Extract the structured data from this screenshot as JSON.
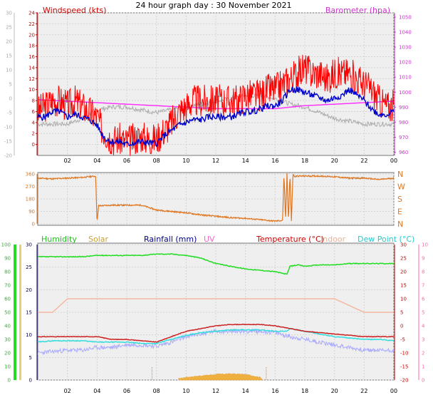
{
  "page_title": "24 hour graph day : 30 November 2021",
  "colors": {
    "wind": "#ff0000",
    "gust_avg": "#0000cc",
    "baro": "#ff33ff",
    "temp_wind_axis": "#cc0000",
    "grey_line": "#aaaaaa",
    "dir": "#dd7722",
    "humidity": "#22dd22",
    "solar": "#f0b040",
    "rain": "#000080",
    "uv": "#ff66cc",
    "temperature": "#cc2222",
    "indoor": "#f4b8a0",
    "dewpoint": "#33dddd",
    "apparent": "#aaaaff",
    "rain_axis": "#000066",
    "pink_axis": "#ff66aa"
  },
  "chart_data": [
    {
      "type": "line",
      "x_ticks": [
        "02",
        "04",
        "06",
        "08",
        "10",
        "12",
        "14",
        "16",
        "18",
        "20",
        "22",
        "00"
      ],
      "left_axis": {
        "label": "Windspeed (kts)",
        "ticks": [
          "0",
          "2",
          "4",
          "6",
          "8",
          "10",
          "12",
          "14",
          "16",
          "18",
          "20",
          "22",
          "24"
        ]
      },
      "far_left_axis": {
        "ticks": [
          "-20",
          "-15",
          "-10",
          "-5",
          "0",
          "5",
          "10",
          "15",
          "20",
          "25",
          "30"
        ]
      },
      "right_axis": {
        "label": "Barometer (hpa)",
        "ticks": [
          "960",
          "970",
          "980",
          "990",
          "1000",
          "1010",
          "1020",
          "1030",
          "1040",
          "1050"
        ]
      },
      "series": [
        {
          "key": "wind",
          "hours": [
            0,
            0.5,
            1,
            1.5,
            2,
            2.5,
            3,
            3.5,
            4,
            4.3,
            4.6,
            5,
            5.5,
            6,
            6.5,
            7,
            7.5,
            8,
            8.3,
            8.7,
            9,
            9.5,
            10,
            10.5,
            11,
            11.5,
            12,
            12.5,
            13,
            13.5,
            14,
            14.5,
            15,
            15.5,
            16,
            16.5,
            17,
            17.5,
            18,
            18.5,
            19,
            19.5,
            20,
            20.5,
            21,
            21.5,
            22,
            22.5,
            23,
            23.5,
            24
          ],
          "values": [
            6,
            7,
            8,
            8,
            7,
            8,
            7,
            6,
            5,
            3,
            2,
            1,
            1,
            0.5,
            1,
            1.5,
            1,
            1,
            2,
            3,
            4,
            6,
            7,
            8,
            8,
            8,
            8,
            8,
            8,
            8,
            9,
            9,
            9,
            10,
            10,
            11,
            12,
            13,
            14,
            13,
            13,
            12,
            13,
            13,
            13,
            12,
            11,
            10,
            8,
            7,
            7
          ]
        },
        {
          "key": "gust_avg",
          "hours": [
            0,
            0.5,
            1,
            1.5,
            2,
            2.5,
            3,
            3.5,
            4,
            4.3,
            4.6,
            5,
            5.5,
            6,
            6.5,
            7,
            7.5,
            8,
            8.3,
            8.7,
            9,
            9.5,
            10,
            10.5,
            11,
            11.5,
            12,
            12.5,
            13,
            13.5,
            14,
            14.5,
            15,
            15.5,
            16,
            16.5,
            17,
            17.5,
            18,
            18.5,
            19,
            19.5,
            20,
            20.5,
            21,
            21.5,
            22,
            22.5,
            23,
            23.5,
            24
          ],
          "values": [
            5,
            5,
            6,
            6,
            5,
            5.5,
            5,
            4.5,
            3.5,
            2,
            1,
            0.5,
            0.5,
            0,
            0.3,
            0.5,
            0.3,
            0.2,
            1,
            2,
            2.5,
            3.5,
            4,
            4.5,
            4.5,
            5,
            5,
            5,
            5,
            5.5,
            6,
            6,
            6.5,
            7,
            7,
            8,
            10,
            10,
            9.5,
            9,
            8.5,
            8,
            8.5,
            9,
            10,
            9,
            8,
            6.5,
            5.5,
            5.5,
            6
          ]
        },
        {
          "key": "grey_line",
          "hours": [
            0,
            1,
            2,
            3,
            4,
            5,
            6,
            7,
            8,
            9,
            10,
            11,
            12,
            13,
            14,
            15,
            16,
            17,
            18,
            19,
            20,
            21,
            22,
            23,
            24
          ],
          "values_far_left": [
            -10,
            -10,
            -10,
            -8,
            -5,
            -4,
            -4,
            -5,
            -6,
            -5,
            -4,
            -3,
            -2,
            -1,
            0,
            0,
            -1,
            -3,
            -4,
            -6,
            -8,
            -9,
            -10,
            -10,
            -10
          ]
        },
        {
          "key": "baro",
          "hours": [
            0,
            2,
            4,
            6,
            8,
            10,
            12,
            14,
            16,
            17,
            18,
            20,
            22,
            24
          ],
          "values_hpa": [
            995,
            994,
            993,
            992,
            991,
            990,
            989,
            989,
            989,
            990,
            991,
            992,
            993,
            994
          ]
        }
      ]
    },
    {
      "type": "line",
      "x_ticks": [
        "02",
        "04",
        "06",
        "08",
        "10",
        "12",
        "14",
        "16",
        "18",
        "20",
        "22",
        "00"
      ],
      "left_axis": {
        "ticks": [
          "0",
          "90",
          "180",
          "270",
          "360"
        ]
      },
      "right_axis": {
        "ticks": [
          "N",
          "W",
          "S",
          "E",
          "N"
        ]
      },
      "series": [
        {
          "key": "dir",
          "hours": [
            0,
            1,
            2,
            3,
            3.9,
            4.0,
            4.1,
            5,
            6,
            7,
            8,
            8.5,
            9,
            10,
            11,
            12,
            13,
            14,
            15,
            16,
            16.5,
            16.6,
            16.7,
            16.8,
            16.9,
            17.0,
            17.1,
            17.2,
            17.3,
            17.5,
            18,
            19,
            20,
            21,
            22,
            23,
            24
          ],
          "values": [
            330,
            325,
            330,
            335,
            345,
            10,
            130,
            135,
            135,
            135,
            100,
            95,
            90,
            80,
            65,
            55,
            45,
            40,
            30,
            20,
            25,
            360,
            20,
            360,
            20,
            360,
            20,
            360,
            340,
            345,
            345,
            345,
            340,
            330,
            330,
            320,
            330
          ]
        }
      ]
    },
    {
      "type": "line",
      "x_ticks": [
        "02",
        "04",
        "06",
        "08",
        "10",
        "12",
        "14",
        "16",
        "18",
        "20",
        "22",
        "00"
      ],
      "legend": [
        "Humidity",
        "Solar",
        "Rainfall (mm)",
        "UV",
        "Temperature (°C)",
        "Indoor",
        "Dew Point (°C)"
      ],
      "humidity_axis": {
        "ticks": [
          "0",
          "10",
          "20",
          "30",
          "40",
          "50",
          "60",
          "70",
          "80",
          "90",
          "100"
        ]
      },
      "solar_axis": {
        "ticks": []
      },
      "rain_axis": {
        "ticks": [
          "0",
          "5",
          "10",
          "15",
          "20",
          "25",
          "30"
        ]
      },
      "temp_axis": {
        "ticks": [
          "-20",
          "-15",
          "-10",
          "-5",
          "0",
          "5",
          "10",
          "15",
          "20",
          "25",
          "30"
        ]
      },
      "uv_axis": {
        "ticks": [
          "0",
          "1",
          "2",
          "3",
          "4",
          "5",
          "6",
          "7",
          "8",
          "9",
          "10"
        ]
      },
      "series": [
        {
          "key": "humidity",
          "hours": [
            0,
            1,
            2,
            3,
            4,
            5,
            6,
            7,
            8,
            9,
            10,
            11,
            12,
            13,
            14,
            15,
            16,
            16.8,
            17,
            17.5,
            18,
            19,
            20,
            21,
            22,
            23,
            24
          ],
          "values": [
            91,
            91,
            91,
            91,
            92,
            92,
            92,
            92,
            93,
            93,
            92,
            90,
            86,
            84,
            82,
            81,
            80,
            78,
            84,
            85,
            84,
            85,
            85,
            86,
            86,
            86,
            86
          ]
        },
        {
          "key": "temperature",
          "hours": [
            0,
            1,
            2,
            3,
            4,
            5,
            6,
            7,
            8,
            9,
            10,
            11,
            12,
            13,
            14,
            15,
            16,
            17,
            18,
            19,
            20,
            21,
            22,
            23,
            24
          ],
          "values": [
            -4,
            -4,
            -4,
            -4,
            -4,
            -5,
            -5,
            -5.5,
            -6,
            -4,
            -2,
            -1,
            0,
            0.5,
            0.5,
            0.5,
            0,
            -1,
            -2,
            -2.5,
            -3,
            -3.5,
            -4,
            -4,
            -4
          ]
        },
        {
          "key": "dewpoint",
          "hours": [
            0,
            1,
            2,
            3,
            4,
            5,
            6,
            7,
            8,
            9,
            10,
            11,
            12,
            13,
            14,
            15,
            16,
            16.8,
            17,
            18,
            19,
            20,
            21,
            22,
            23,
            24
          ],
          "values": [
            -6,
            -5.5,
            -5.5,
            -5.5,
            -6,
            -6,
            -6,
            -6.5,
            -6.5,
            -5,
            -3.5,
            -2.5,
            -2,
            -1.5,
            -1.5,
            -1.5,
            -2,
            -2,
            -1,
            -2,
            -3,
            -4,
            -4.5,
            -5,
            -5,
            -5.5
          ]
        },
        {
          "key": "apparent",
          "hours": [
            0,
            1,
            2,
            3,
            4,
            5,
            6,
            7,
            8,
            9,
            10,
            11,
            12,
            13,
            14,
            15,
            16,
            17,
            18,
            19,
            20,
            21,
            22,
            23,
            24
          ],
          "values": [
            -10,
            -9.5,
            -9,
            -9,
            -8,
            -8,
            -7,
            -7,
            -7.5,
            -6,
            -4,
            -3,
            -2,
            -2,
            -2,
            -2,
            -2.5,
            -4,
            -5,
            -6,
            -7,
            -8,
            -9,
            -9,
            -9
          ]
        },
        {
          "key": "indoor",
          "hours": [
            0,
            1,
            2,
            3,
            4,
            6,
            8,
            10,
            12,
            14,
            16,
            18,
            20,
            22,
            24
          ],
          "values": [
            5,
            5,
            6,
            6,
            6,
            6,
            6,
            6,
            6,
            6,
            6,
            6,
            6,
            5,
            5
          ]
        },
        {
          "key": "solar",
          "hours": [
            9.5,
            10,
            11,
            12,
            13,
            14,
            14.5,
            15,
            15.2
          ],
          "values": [
            0.5,
            1,
            1.5,
            2,
            2.2,
            2,
            1.5,
            1,
            0
          ]
        }
      ]
    }
  ]
}
